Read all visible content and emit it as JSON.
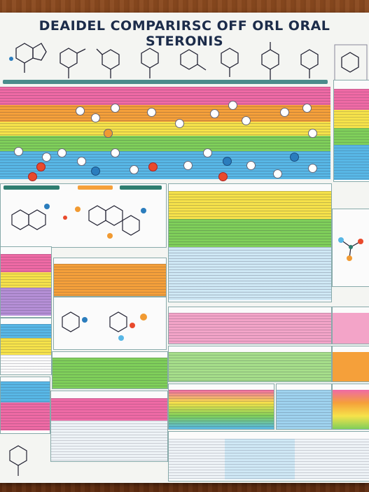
{
  "poster": {
    "title": "DEAIDEL COMPARIRSC OFF ORL ORAL STERONIS"
  },
  "colors": {
    "wood": "#7a3a17",
    "paper": "#f4f5f2",
    "pink": "#ef6aa5",
    "orange": "#f5a03a",
    "yellow": "#f6e24a",
    "green": "#7fcf5a",
    "blue": "#58b7e6",
    "navy": "#1c2c4a"
  }
}
